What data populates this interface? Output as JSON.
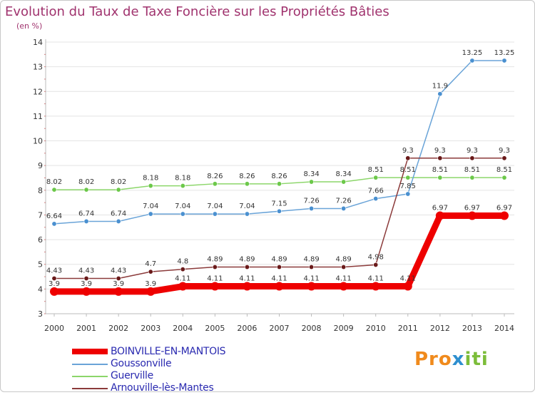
{
  "header": {
    "title": "Evolution du Taux de Taxe Foncière sur les Propriétés Bâties",
    "unit": "(en %)"
  },
  "logo": {
    "parts": [
      "Pro",
      "x",
      "iti"
    ]
  },
  "chart_data": {
    "type": "line",
    "title": "Evolution du Taux de Taxe Foncière sur les Propriétés Bâties",
    "ylabel": "(en %)",
    "xlabel": "",
    "x": [
      "2000",
      "2001",
      "2002",
      "2003",
      "2004",
      "2005",
      "2006",
      "2007",
      "2008",
      "2009",
      "2010",
      "2011",
      "2012",
      "2013",
      "2014"
    ],
    "yticks": [
      3,
      4,
      5,
      6,
      7,
      8,
      9,
      10,
      11,
      12,
      13,
      14
    ],
    "ylim": [
      3,
      14
    ],
    "grid": true,
    "legend_position": "bottom-left",
    "series": [
      {
        "name": "BOINVILLE-EN-MANTOIS",
        "color": "#ee0000",
        "marker_color": "#ee0000",
        "values": [
          3.9,
          3.9,
          3.9,
          3.9,
          4.11,
          4.11,
          4.11,
          4.11,
          4.11,
          4.11,
          4.11,
          4.11,
          6.97,
          6.97,
          6.97
        ],
        "labels": [
          "3.9",
          "3.9",
          "3.9",
          "3.9",
          "4.11",
          "4.11",
          "4.11",
          "4.11",
          "4.11",
          "4.11",
          "4.11",
          "4.11",
          "6.97",
          "6.97",
          "6.97"
        ]
      },
      {
        "name": "Goussonville",
        "color": "#6aa4d8",
        "marker_color": "#4a90d0",
        "values": [
          6.64,
          6.74,
          6.74,
          7.04,
          7.04,
          7.04,
          7.04,
          7.15,
          7.26,
          7.26,
          7.66,
          7.85,
          11.9,
          13.25,
          13.25
        ],
        "labels": [
          "6.64",
          "6.74",
          "6.74",
          "7.04",
          "7.04",
          "7.04",
          "7.04",
          "7.15",
          "7.26",
          "7.26",
          "7.66",
          "7.85",
          "11.9",
          "13.25",
          "13.25"
        ]
      },
      {
        "name": "Guerville",
        "color": "#8cd66a",
        "marker_color": "#6cc84a",
        "values": [
          8.02,
          8.02,
          8.02,
          8.18,
          8.18,
          8.26,
          8.26,
          8.26,
          8.34,
          8.34,
          8.51,
          8.51,
          8.51,
          8.51,
          8.51
        ],
        "labels": [
          "8.02",
          "8.02",
          "8.02",
          "8.18",
          "8.18",
          "8.26",
          "8.26",
          "8.26",
          "8.34",
          "8.34",
          "8.51",
          "8.51",
          "8.51",
          "8.51",
          "8.51"
        ]
      },
      {
        "name": "Arnouville-lès-Mantes",
        "color": "#8b3a3a",
        "marker_color": "#6a1a1a",
        "values": [
          4.43,
          4.43,
          4.43,
          4.7,
          4.8,
          4.89,
          4.89,
          4.89,
          4.89,
          4.89,
          4.98,
          9.3,
          9.3,
          9.3,
          9.3
        ],
        "labels": [
          "4.43",
          "4.43",
          "4.43",
          "4.7",
          "4.8",
          "4.89",
          "4.89",
          "4.89",
          "4.89",
          "4.89",
          "4.98",
          "9.3",
          "9.3",
          "9.3",
          "9.3"
        ]
      }
    ]
  }
}
